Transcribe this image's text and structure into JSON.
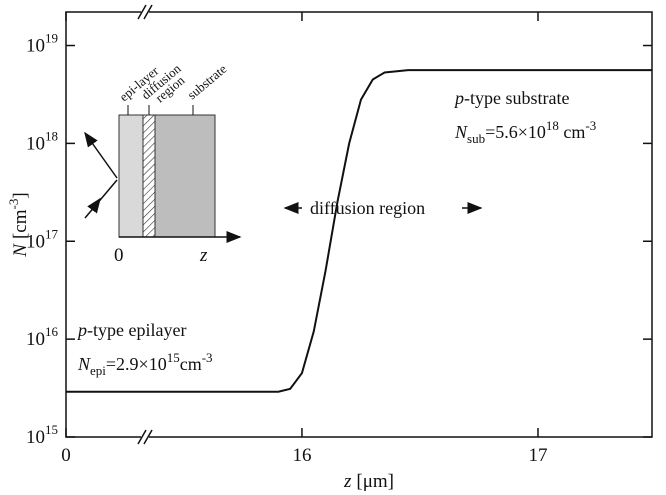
{
  "chart_data": {
    "type": "line",
    "x_segments": [
      {
        "xlim": [
          0,
          0.335
        ],
        "xticks": [
          0
        ]
      },
      {
        "xlim": [
          15.335,
          17.483
        ],
        "xticks": [
          16,
          17
        ]
      }
    ],
    "ylim": [
      1000000000000000.0,
      2.2e+19
    ],
    "log_y": true,
    "yticks": [
      {
        "value": 1000000000000000.0,
        "label": "10",
        "exponent": "15"
      },
      {
        "value": 1e+16,
        "label": "10",
        "exponent": "16"
      },
      {
        "value": 1e+17,
        "label": "10",
        "exponent": "17"
      },
      {
        "value": 1e+18,
        "label": "10",
        "exponent": "18"
      },
      {
        "value": 1e+19,
        "label": "10",
        "exponent": "19"
      }
    ],
    "xlabel": {
      "symbol": "z",
      "unit": "[μm]"
    },
    "ylabel": {
      "symbol": "N",
      "unit": "[cm",
      "exponent": "-3",
      "close": "]"
    },
    "x": [
      0,
      15.335,
      15.9,
      15.95,
      16.0,
      16.05,
      16.1,
      16.15,
      16.2,
      16.25,
      16.3,
      16.35,
      16.45,
      17.483
    ],
    "series": [
      {
        "color": "#111111",
        "values": [
          2900000000000000.0,
          2900000000000000.0,
          2900000000000000.0,
          3100000000000000.0,
          4500000000000000.0,
          1.2e+16,
          5e+16,
          2.5e+17,
          1e+18,
          2.8e+18,
          4.5e+18,
          5.3e+18,
          5.6e+18,
          5.6e+18
        ]
      }
    ],
    "annotations": {
      "substrate": {
        "italic": "p",
        "text": "-type substrate"
      },
      "nsub": {
        "symbol": "N",
        "sub": "sub",
        "text": "=5.6×10",
        "exponent": "18",
        "unit": " cm",
        "unit_exponent": "-3"
      },
      "epilayer": {
        "italic": "p",
        "text": "-type epilayer"
      },
      "nepi": {
        "symbol": "N",
        "sub": "epi",
        "text": "=2.9×10",
        "exponent": "15",
        "unit": "cm",
        "unit_exponent": "-3"
      },
      "diffusion": "diffusion region"
    },
    "inset": {
      "labels": [
        "epi-layer",
        "diffusion",
        "region",
        "substrate"
      ],
      "origin": "0",
      "axis": "z"
    }
  }
}
